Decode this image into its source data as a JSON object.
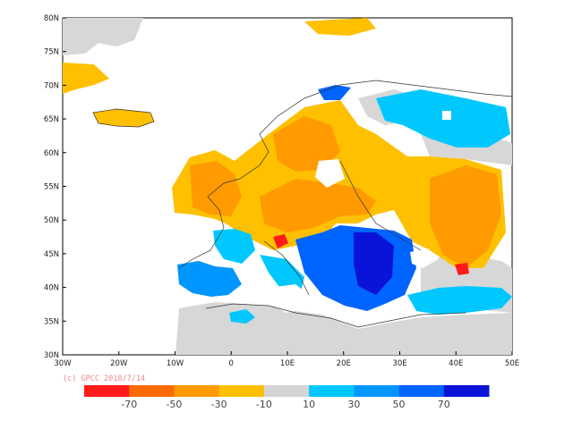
{
  "map": {
    "lon_ticks": [
      "30W",
      "20W",
      "10W",
      "0",
      "10E",
      "20E",
      "30E",
      "40E",
      "50E"
    ],
    "lat_ticks": [
      "30N",
      "35N",
      "40N",
      "45N",
      "50N",
      "55N",
      "60N",
      "65N",
      "70N",
      "75N",
      "80N"
    ],
    "extent": {
      "lon": [
        -30,
        50
      ],
      "lat": [
        30,
        80
      ]
    },
    "copyright": "(c) GPCC 2018/7/14",
    "missing_color": "#d7d7d7",
    "land_border_color": "#333333"
  },
  "colorbar": {
    "colors": [
      "#ff1a1a",
      "#ff6a00",
      "#ff9a00",
      "#ffc000",
      "#d4d4d4",
      "#00c8ff",
      "#0096ff",
      "#0064ff",
      "#0a14d8"
    ],
    "labels": [
      "-70",
      "-50",
      "-30",
      "-10",
      "10",
      "30",
      "50",
      "70"
    ]
  }
}
